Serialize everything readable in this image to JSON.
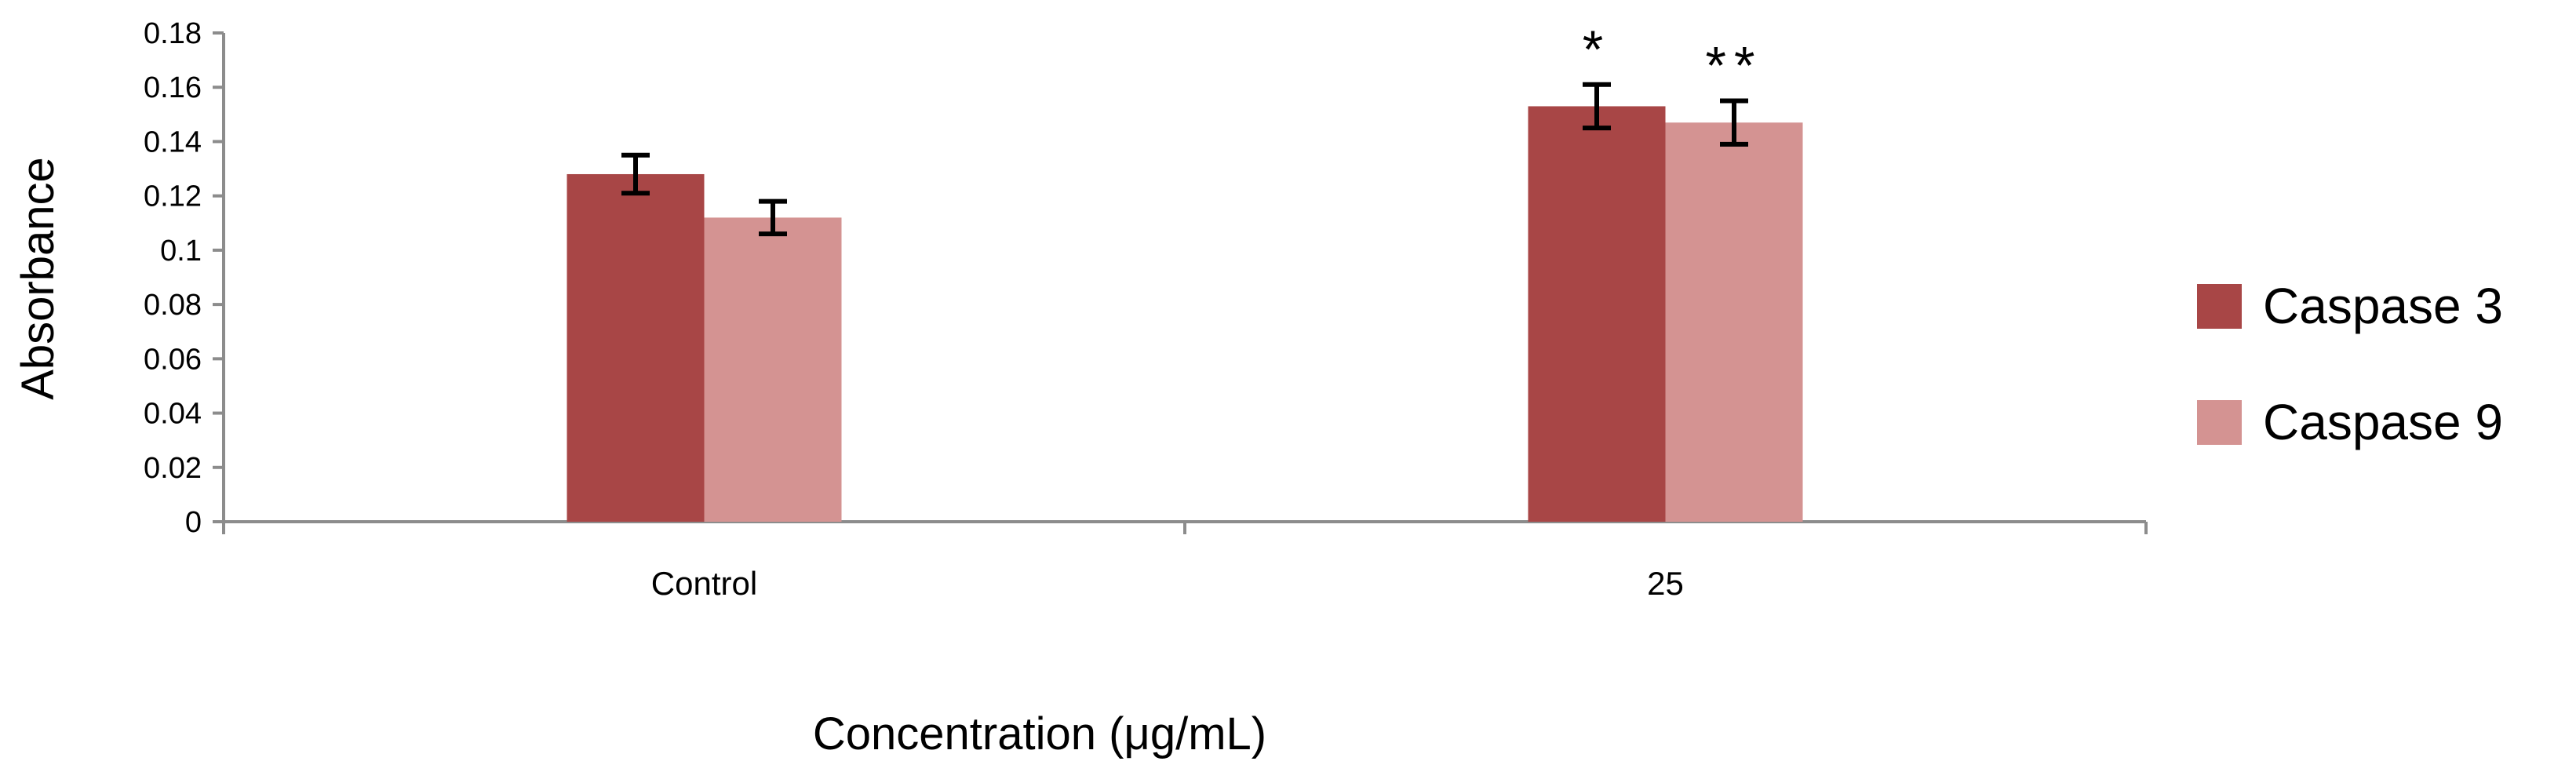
{
  "chart_data": {
    "type": "bar",
    "title": "",
    "xlabel": "Concentration (μg/mL)",
    "ylabel": "Absorbance",
    "categories": [
      "Control",
      "25"
    ],
    "ylim": [
      0,
      0.18
    ],
    "yticks": [
      0,
      0.02,
      0.04,
      0.06,
      0.08,
      0.1,
      0.12,
      0.14,
      0.16,
      0.18
    ],
    "ytick_labels": [
      "0",
      "0.02",
      "0.04",
      "0.06",
      "0.08",
      "0.1",
      "0.12",
      "0.14",
      "0.16",
      "0.18"
    ],
    "series": [
      {
        "name": "Caspase 3",
        "color": "#A84646",
        "values": [
          0.128,
          0.153
        ],
        "errors": [
          0.007,
          0.008
        ],
        "annotations": [
          "",
          "*"
        ]
      },
      {
        "name": "Caspase 9",
        "color": "#D49392",
        "values": [
          0.112,
          0.147
        ],
        "errors": [
          0.006,
          0.008
        ],
        "annotations": [
          "",
          "**"
        ]
      }
    ],
    "legend_position": "right",
    "grid": false
  }
}
